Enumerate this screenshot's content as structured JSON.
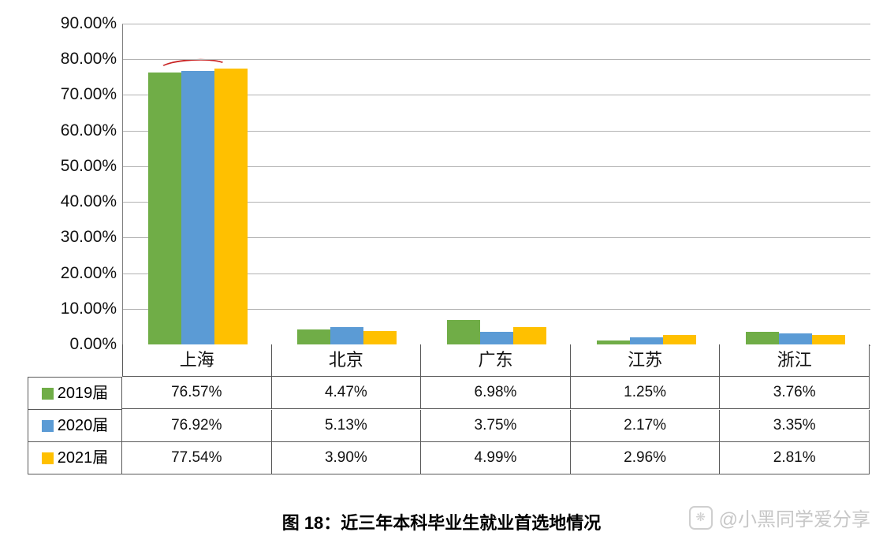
{
  "chart_data": {
    "type": "bar",
    "title": "图 18：近三年本科毕业生就业首选地情况",
    "categories": [
      "上海",
      "北京",
      "广东",
      "江苏",
      "浙江"
    ],
    "series": [
      {
        "name": "2019届",
        "color": "#70ad47",
        "values": [
          76.57,
          4.47,
          6.98,
          1.25,
          3.76
        ]
      },
      {
        "name": "2020届",
        "color": "#5b9bd5",
        "values": [
          76.92,
          5.13,
          3.75,
          2.17,
          3.35
        ]
      },
      {
        "name": "2021届",
        "color": "#ffc000",
        "values": [
          77.54,
          3.9,
          4.99,
          2.96,
          2.81
        ]
      }
    ],
    "ylim": [
      0,
      90
    ],
    "ytick_step": 10,
    "ytick_labels": [
      "90.00%",
      "80.00%",
      "70.00%",
      "60.00%",
      "50.00%",
      "40.00%",
      "30.00%",
      "20.00%",
      "10.00%",
      "0.00%"
    ],
    "grid": true,
    "legend_position": "table-left"
  },
  "table": {
    "rows": [
      {
        "label": "2019届",
        "swatch_color": "#70ad47",
        "values": [
          "76.57%",
          "4.47%",
          "6.98%",
          "1.25%",
          "3.76%"
        ]
      },
      {
        "label": "2020届",
        "swatch_color": "#5b9bd5",
        "values": [
          "76.92%",
          "5.13%",
          "3.75%",
          "2.17%",
          "3.35%"
        ]
      },
      {
        "label": "2021届",
        "swatch_color": "#ffc000",
        "values": [
          "77.54%",
          "3.90%",
          "4.99%",
          "2.96%",
          "2.81%"
        ]
      }
    ]
  },
  "caption": "图 18：近三年本科毕业生就业首选地情况",
  "watermark": "@小黑同学爱分享"
}
